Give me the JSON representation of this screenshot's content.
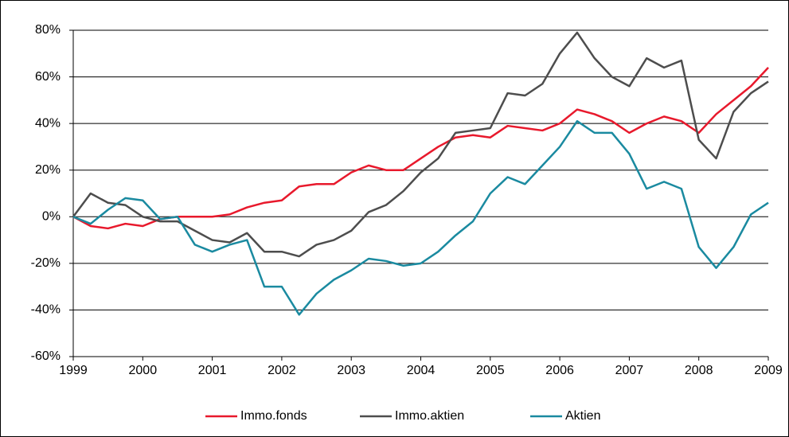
{
  "chart_data": {
    "type": "line",
    "x": [
      1999,
      1999.25,
      1999.5,
      1999.75,
      2000,
      2000.25,
      2000.5,
      2000.75,
      2001,
      2001.25,
      2001.5,
      2001.75,
      2002,
      2002.25,
      2002.5,
      2002.75,
      2003,
      2003.25,
      2003.5,
      2003.75,
      2004,
      2004.25,
      2004.5,
      2004.75,
      2005,
      2005.25,
      2005.5,
      2005.75,
      2006,
      2006.25,
      2006.5,
      2006.75,
      2007,
      2007.25,
      2007.5,
      2007.75,
      2008,
      2008.25,
      2008.5,
      2008.75,
      2009
    ],
    "series": [
      {
        "name": "Immo.fonds",
        "color": "#e8192c",
        "values": [
          0,
          -4,
          -5,
          -3,
          -4,
          -1,
          0,
          0,
          0,
          1,
          4,
          6,
          7,
          13,
          14,
          14,
          19,
          22,
          20,
          20,
          25,
          30,
          34,
          35,
          34,
          39,
          38,
          37,
          40,
          46,
          44,
          41,
          36,
          40,
          43,
          41,
          36,
          44,
          50,
          56,
          64
        ]
      },
      {
        "name": "Immo.aktien",
        "color": "#4d4d4d",
        "values": [
          0,
          10,
          6,
          5,
          0,
          -2,
          -2,
          -6,
          -10,
          -11,
          -7,
          -15,
          -15,
          -17,
          -12,
          -10,
          -6,
          2,
          5,
          11,
          19,
          25,
          36,
          37,
          38,
          53,
          52,
          57,
          70,
          79,
          68,
          60,
          56,
          68,
          64,
          67,
          33,
          25,
          45,
          53,
          58
        ]
      },
      {
        "name": "Aktien",
        "color": "#1a8aa0",
        "values": [
          0,
          -3,
          3,
          8,
          7,
          -1,
          0,
          -12,
          -15,
          -12,
          -10,
          -30,
          -30,
          -42,
          -33,
          -27,
          -23,
          -18,
          -19,
          -21,
          -20,
          -15,
          -8,
          -2,
          10,
          17,
          14,
          22,
          30,
          41,
          36,
          36,
          27,
          12,
          15,
          12,
          -13,
          -22,
          -13,
          1,
          6
        ]
      }
    ],
    "xlim": [
      1999,
      2009
    ],
    "xticks": [
      1999,
      2000,
      2001,
      2002,
      2003,
      2004,
      2005,
      2006,
      2007,
      2008,
      2009
    ],
    "ylim": [
      -60,
      80
    ],
    "yticks": [
      {
        "value": -60,
        "label": "-60%"
      },
      {
        "value": -40,
        "label": "-40%"
      },
      {
        "value": -20,
        "label": "-20%"
      },
      {
        "value": 0,
        "label": "0%"
      },
      {
        "value": 20,
        "label": "20%"
      },
      {
        "value": 40,
        "label": "40%"
      },
      {
        "value": 60,
        "label": "60%"
      },
      {
        "value": 80,
        "label": "80%"
      }
    ],
    "grid": true,
    "legend": "bottom"
  }
}
